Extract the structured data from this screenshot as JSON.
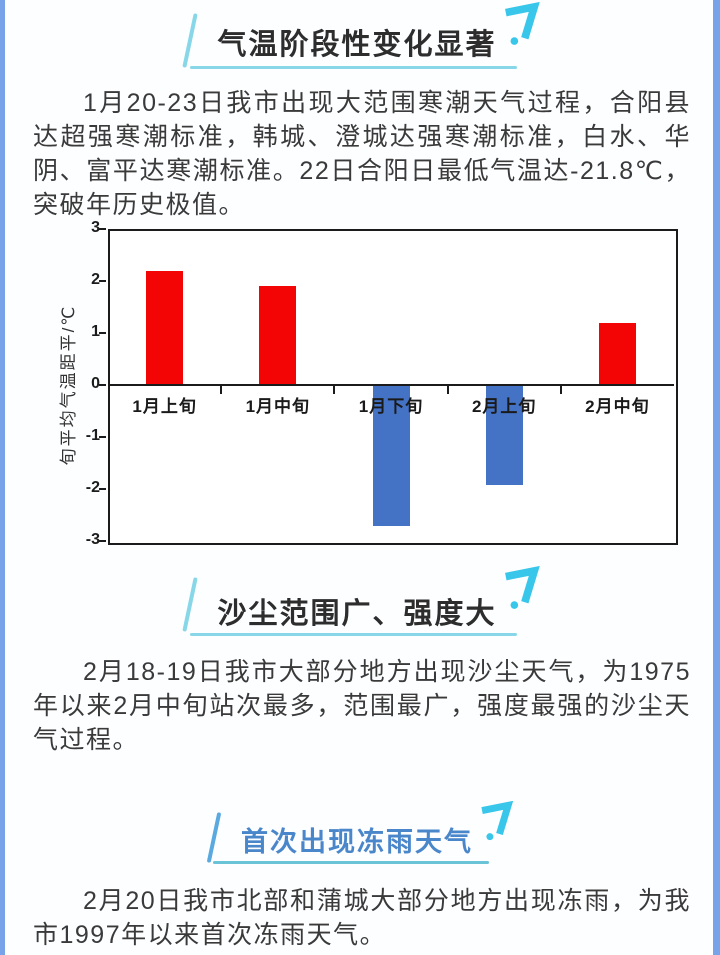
{
  "page": {
    "bg": "#fdfeff",
    "edge_strip_color": "#76a3ea"
  },
  "theme": {
    "accent_cyan": "#87d7e9",
    "seven_cyan": "#38c6ea",
    "section3_slash_blue": "#5aa9df",
    "section3_underline_teal": "#6ac3d6",
    "title_dark": "#2d2d2d",
    "title_blue": "#4a86ca",
    "body_text": "#3a3a3a"
  },
  "sections": [
    {
      "title": "气温阶段性变化显著",
      "paragraph": "1月20-23日我市出现大范围寒潮天气过程，合阳县达超强寒潮标准，韩城、澄城达强寒潮标准，白水、华阴、富平达寒潮标准。22日合阳日最低气温达-21.8℃，突破年历史极值。"
    },
    {
      "title": "沙尘范围广、强度大",
      "paragraph": "2月18-19日我市大部分地方出现沙尘天气，为1975年以来2月中旬站次最多，范围最广，强度最强的沙尘天气过程。"
    },
    {
      "title": "首次出现冻雨天气",
      "paragraph": "2月20日我市北部和蒲城大部分地方出现冻雨，为我市1997年以来首次冻雨天气。"
    }
  ],
  "chart_data": {
    "type": "bar",
    "title": "",
    "categories": [
      "1月上旬",
      "1月中旬",
      "1月下旬",
      "2月上旬",
      "2月中旬"
    ],
    "values": [
      2.2,
      1.9,
      -2.7,
      -1.9,
      1.2
    ],
    "xlabel": "",
    "ylabel": "旬平均气温距平/℃",
    "ylim": [
      -3,
      3
    ],
    "yticks": [
      3,
      2,
      1,
      0,
      -1,
      -2,
      -3
    ],
    "positive_color": "#f30505",
    "negative_color": "#4472c4",
    "grid": false,
    "legend": null
  }
}
